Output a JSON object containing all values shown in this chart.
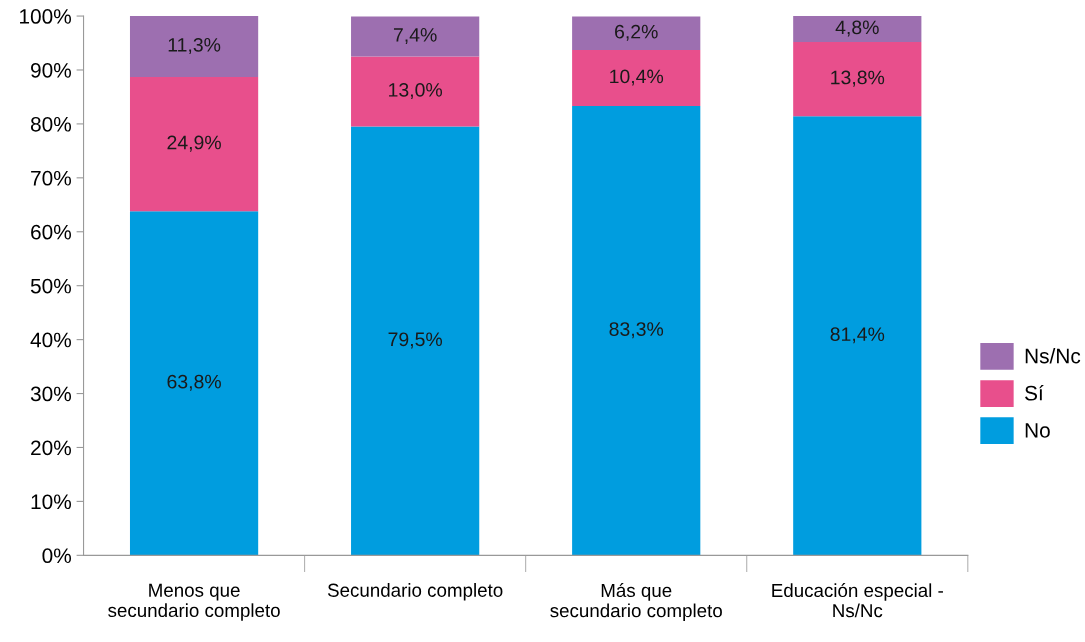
{
  "chart_data": {
    "type": "bar",
    "stacked": true,
    "categories": [
      "Menos que\nsecundario completo",
      "Secundario completo",
      "Más que\nsecundario completo",
      "Educación especial -\nNs/Nc"
    ],
    "series": [
      {
        "name": "No",
        "color": "#009ddf",
        "values": [
          63.8,
          79.5,
          83.3,
          81.4
        ],
        "value_labels": [
          "63,8%",
          "79,5%",
          "83,3%",
          "81,4%"
        ]
      },
      {
        "name": "Sí",
        "color": "#e84f8c",
        "values": [
          24.9,
          13.0,
          10.4,
          13.8
        ],
        "value_labels": [
          "24,9%",
          "13,0%",
          "10,4%",
          "13,8%"
        ]
      },
      {
        "name": "Ns/Nc",
        "color": "#9d6fb0",
        "values": [
          11.3,
          7.4,
          6.2,
          4.8
        ],
        "value_labels": [
          "11,3%",
          "7,4%",
          "6,2%",
          "4,8%"
        ]
      }
    ],
    "ylim": [
      0,
      100
    ],
    "yticks": [
      {
        "value": 0,
        "label": "0%"
      },
      {
        "value": 10,
        "label": "10%"
      },
      {
        "value": 20,
        "label": "20%"
      },
      {
        "value": 30,
        "label": "30%"
      },
      {
        "value": 40,
        "label": "40%"
      },
      {
        "value": 50,
        "label": "50%"
      },
      {
        "value": 60,
        "label": "60%"
      },
      {
        "value": 70,
        "label": "70%"
      },
      {
        "value": 80,
        "label": "80%"
      },
      {
        "value": 90,
        "label": "90%"
      },
      {
        "value": 100,
        "label": "100%"
      }
    ],
    "grid": false,
    "legend": "right"
  }
}
